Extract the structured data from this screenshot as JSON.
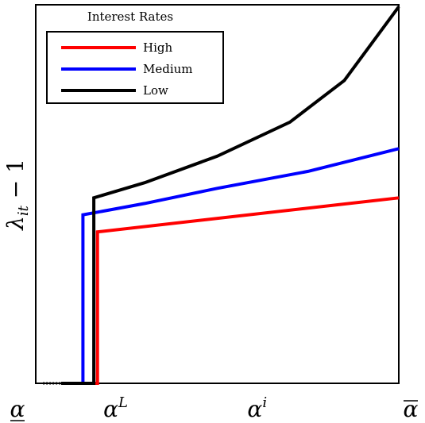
{
  "chart_data": {
    "type": "line",
    "ylabel": "λit − 1",
    "xlabel": "",
    "xlim": [
      0,
      1
    ],
    "ylim": [
      0,
      1
    ],
    "x_ticks": [
      {
        "x": 0.0,
        "label": "α"
      },
      {
        "x": 0.22,
        "label": "αL"
      },
      {
        "x": 0.61,
        "label": "αi"
      },
      {
        "x": 1.0,
        "label": "α"
      }
    ],
    "legend": {
      "title": "Interest Rates",
      "placement": "top-left"
    },
    "baseline": {
      "dotted_from": 0.02,
      "dotted_to": 0.07
    },
    "series": [
      {
        "name": "High",
        "color": "#ff0000",
        "points": [
          [
            0.07,
            0
          ],
          [
            0.17,
            0
          ],
          [
            0.17,
            0.4
          ],
          [
            1.0,
            0.49
          ]
        ]
      },
      {
        "name": "Medium",
        "color": "#0000ff",
        "points": [
          [
            0.07,
            0
          ],
          [
            0.13,
            0
          ],
          [
            0.13,
            0.445
          ],
          [
            0.3,
            0.475
          ],
          [
            0.5,
            0.515
          ],
          [
            0.75,
            0.56
          ],
          [
            1.0,
            0.62
          ]
        ]
      },
      {
        "name": "Low",
        "color": "#000000",
        "points": [
          [
            0.07,
            0
          ],
          [
            0.16,
            0
          ],
          [
            0.16,
            0.49
          ],
          [
            0.3,
            0.53
          ],
          [
            0.5,
            0.6
          ],
          [
            0.7,
            0.69
          ],
          [
            0.85,
            0.8
          ],
          [
            1.0,
            0.995
          ]
        ]
      }
    ]
  }
}
